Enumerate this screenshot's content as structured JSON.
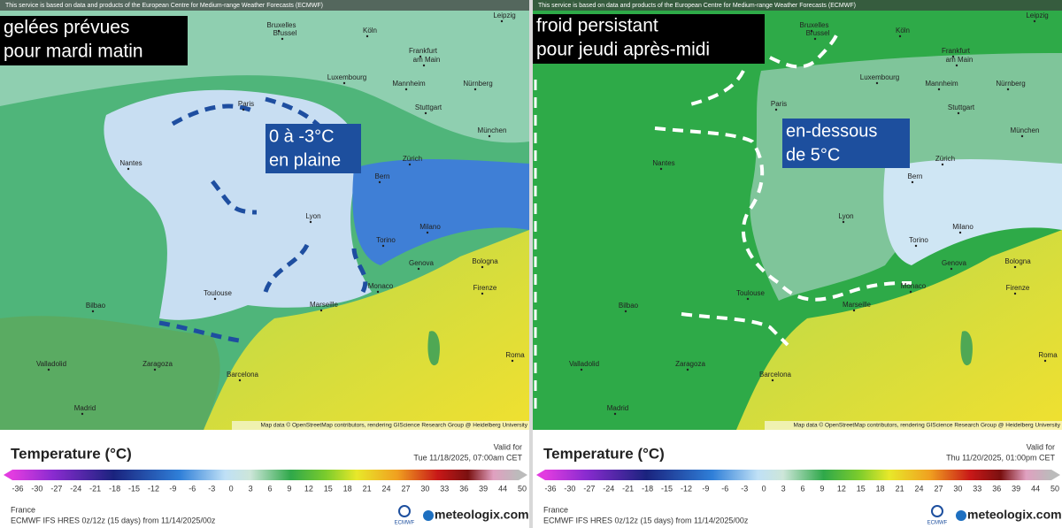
{
  "panels": [
    {
      "source_note": "This service is based on data and products of the European Centre for Medium-range Weather Forecasts (ECMWF)",
      "title_lines": [
        "gelées prévues",
        "pour mardi matin"
      ],
      "annotation_lines": [
        "0 à -3°C",
        "en plaine"
      ],
      "cities": [
        "Leipzig",
        "Bruxelles",
        "Brussel",
        "Köln",
        "Frankfurt",
        "am Main",
        "Luxembourg",
        "Paris",
        "Mannheim",
        "Nürnberg",
        "Stuttgart",
        "München",
        "Nantes",
        "Zürich",
        "Bern",
        "Lyon",
        "Torino",
        "Milano",
        "Genova",
        "Bologna",
        "Monaco",
        "Firenze",
        "Toulouse",
        "Marseille",
        "Bilbao",
        "Valladolid",
        "Zaragoza",
        "Barcelona",
        "Madrid",
        "Roma"
      ],
      "map_attribution": "Map data © OpenStreetMap contributors, rendering GIScience Research Group @ Heidelberg University",
      "legend_title": "Temperature (°C)",
      "valid_label": "Valid for",
      "valid_time": "Tue 11/18/2025, 07:00am CET",
      "scale_ticks": [
        -36,
        -30,
        -27,
        -24,
        -21,
        -18,
        -15,
        -12,
        -9,
        -6,
        -3,
        0,
        3,
        6,
        9,
        12,
        15,
        18,
        21,
        24,
        27,
        30,
        33,
        36,
        39,
        44,
        50
      ],
      "region": "France",
      "model_run": "ECMWF IFS HRES 0z/12z (15 days) from 11/14/2025/00z",
      "logo": "ECMWF",
      "brand": "meteologix.com"
    },
    {
      "source_note": "This service is based on data and products of the European Centre for Medium-range Weather Forecasts (ECMWF)",
      "title_lines": [
        "froid persistant",
        "pour jeudi après-midi"
      ],
      "annotation_lines": [
        "en-dessous",
        "de 5°C"
      ],
      "cities": [
        "Leipzig",
        "Bruxelles",
        "Brussel",
        "Köln",
        "Frankfurt",
        "am Main",
        "Luxembourg",
        "Paris",
        "Mannheim",
        "Nürnberg",
        "Stuttgart",
        "München",
        "Nantes",
        "Zürich",
        "Bern",
        "Lyon",
        "Torino",
        "Milano",
        "Genova",
        "Bologna",
        "Monaco",
        "Firenze",
        "Toulouse",
        "Marseille",
        "Bilbao",
        "Valladolid",
        "Zaragoza",
        "Barcelona",
        "Madrid",
        "Roma"
      ],
      "map_attribution": "Map data © OpenStreetMap contributors, rendering GIScience Research Group @ Heidelberg University",
      "legend_title": "Temperature (°C)",
      "valid_label": "Valid for",
      "valid_time": "Thu 11/20/2025, 01:00pm CET",
      "scale_ticks": [
        -36,
        -30,
        -27,
        -24,
        -21,
        -18,
        -15,
        -12,
        -9,
        -6,
        -3,
        0,
        3,
        6,
        9,
        12,
        15,
        18,
        21,
        24,
        27,
        30,
        33,
        36,
        39,
        44,
        50
      ],
      "region": "France",
      "model_run": "ECMWF IFS HRES 0z/12z (15 days) from 11/14/2025/00z",
      "logo": "ECMWF",
      "brand": "meteologix.com"
    }
  ]
}
